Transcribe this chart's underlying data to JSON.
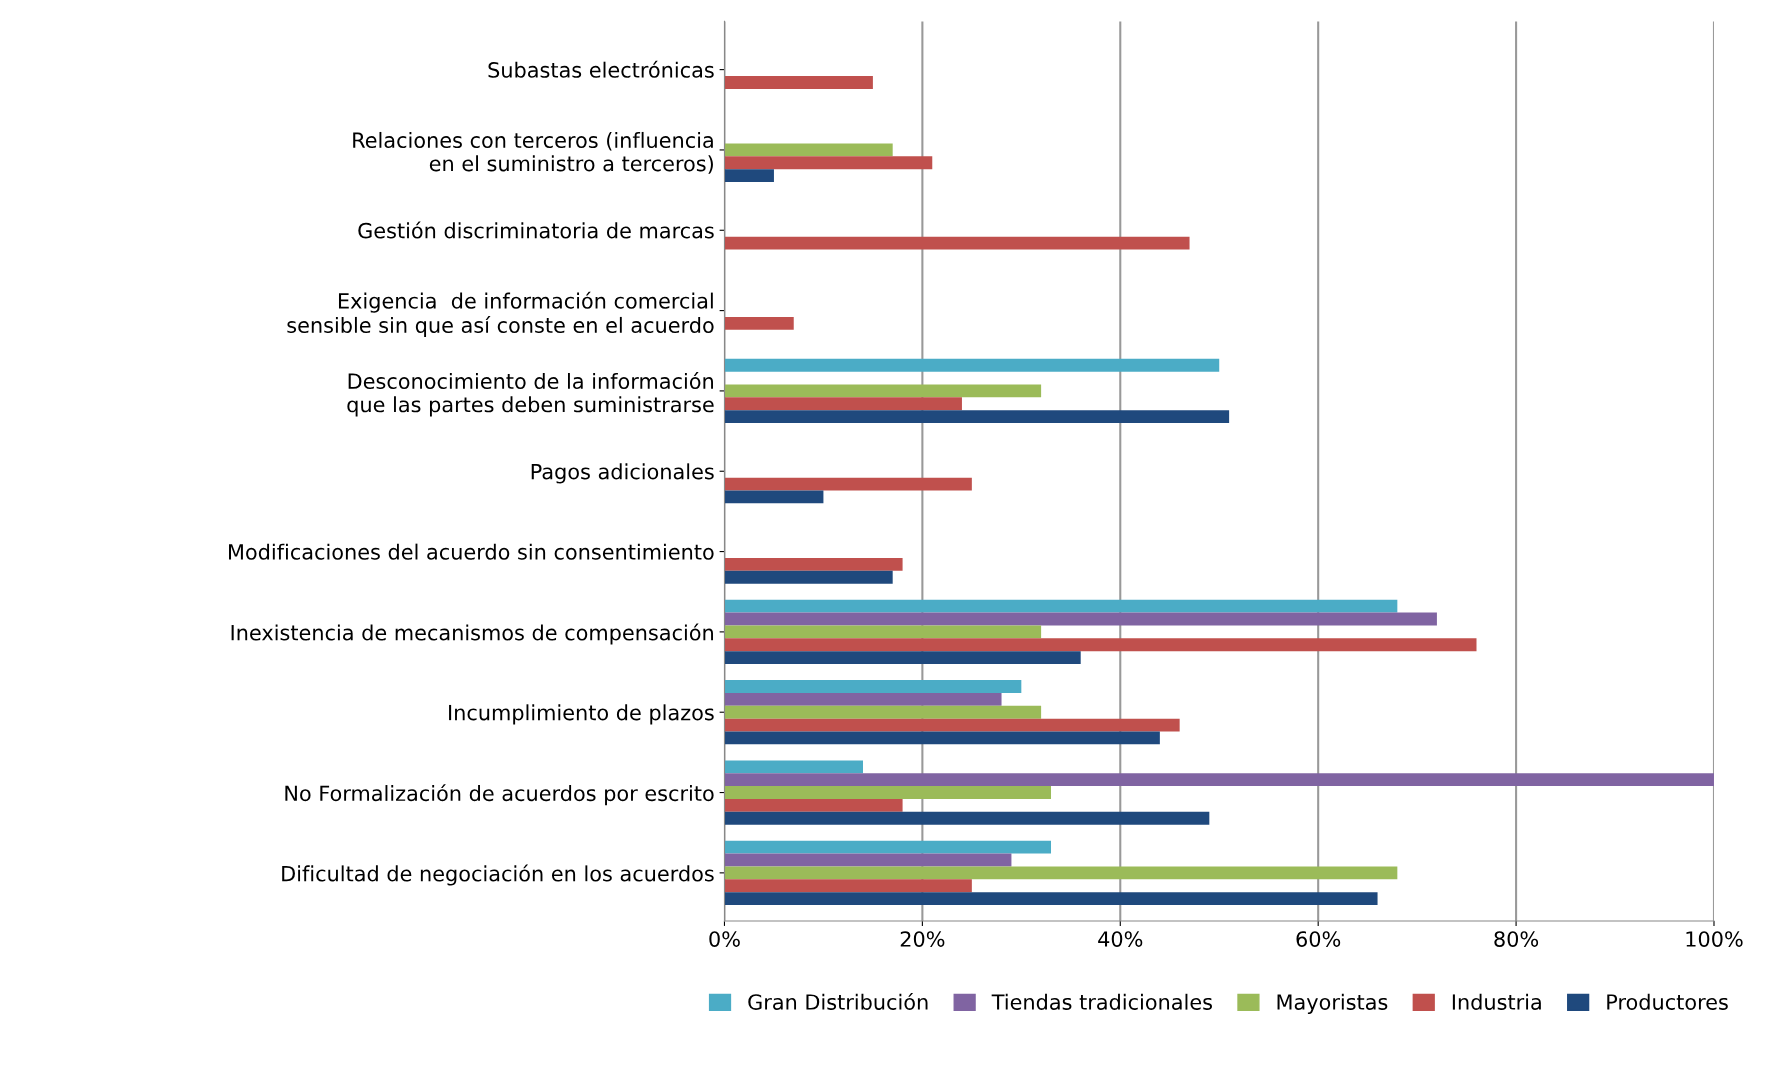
{
  "chart_data": {
    "type": "bar",
    "orientation": "horizontal",
    "categories": [
      "Subastas electrónicas",
      "Relaciones con terceros (influencia en el suministro a terceros)",
      "Gestión discriminatoria de marcas",
      "Exigencia  de información comercial sensible sin que así conste en el acuerdo",
      "Desconocimiento de la información que las partes deben suministrarse",
      "Pagos adicionales",
      "Modificaciones del acuerdo sin consentimiento",
      "Inexistencia de mecanismos de compensación",
      "Incumplimiento de plazos",
      "No Formalización de acuerdos por escrito",
      "Dificultad de negociación en los acuerdos"
    ],
    "series": [
      {
        "name": "Gran Distribución",
        "color": "#4bacc6",
        "values": [
          null,
          null,
          null,
          null,
          50,
          null,
          null,
          68,
          30,
          14,
          33
        ]
      },
      {
        "name": "Tiendas tradicionales",
        "color": "#8064a2",
        "values": [
          null,
          null,
          null,
          null,
          null,
          null,
          null,
          72,
          28,
          100,
          29
        ]
      },
      {
        "name": "Mayoristas",
        "color": "#9bbb59",
        "values": [
          null,
          17,
          null,
          null,
          32,
          null,
          null,
          32,
          32,
          33,
          68
        ]
      },
      {
        "name": "Industria",
        "color": "#c0504d",
        "values": [
          15,
          21,
          47,
          7,
          24,
          25,
          18,
          76,
          46,
          18,
          25
        ]
      },
      {
        "name": "Productores",
        "color": "#1f497d",
        "values": [
          null,
          5,
          null,
          null,
          51,
          10,
          17,
          36,
          44,
          49,
          66
        ]
      }
    ],
    "xlim": [
      0,
      100
    ],
    "xticks": [
      {
        "value": 0,
        "label": "0%"
      },
      {
        "value": 20,
        "label": "20%"
      },
      {
        "value": 40,
        "label": "40%"
      },
      {
        "value": 60,
        "label": "60%"
      },
      {
        "value": 80,
        "label": "80%"
      },
      {
        "value": 100,
        "label": "100%"
      }
    ],
    "grid": "x",
    "legend": "bottom"
  }
}
